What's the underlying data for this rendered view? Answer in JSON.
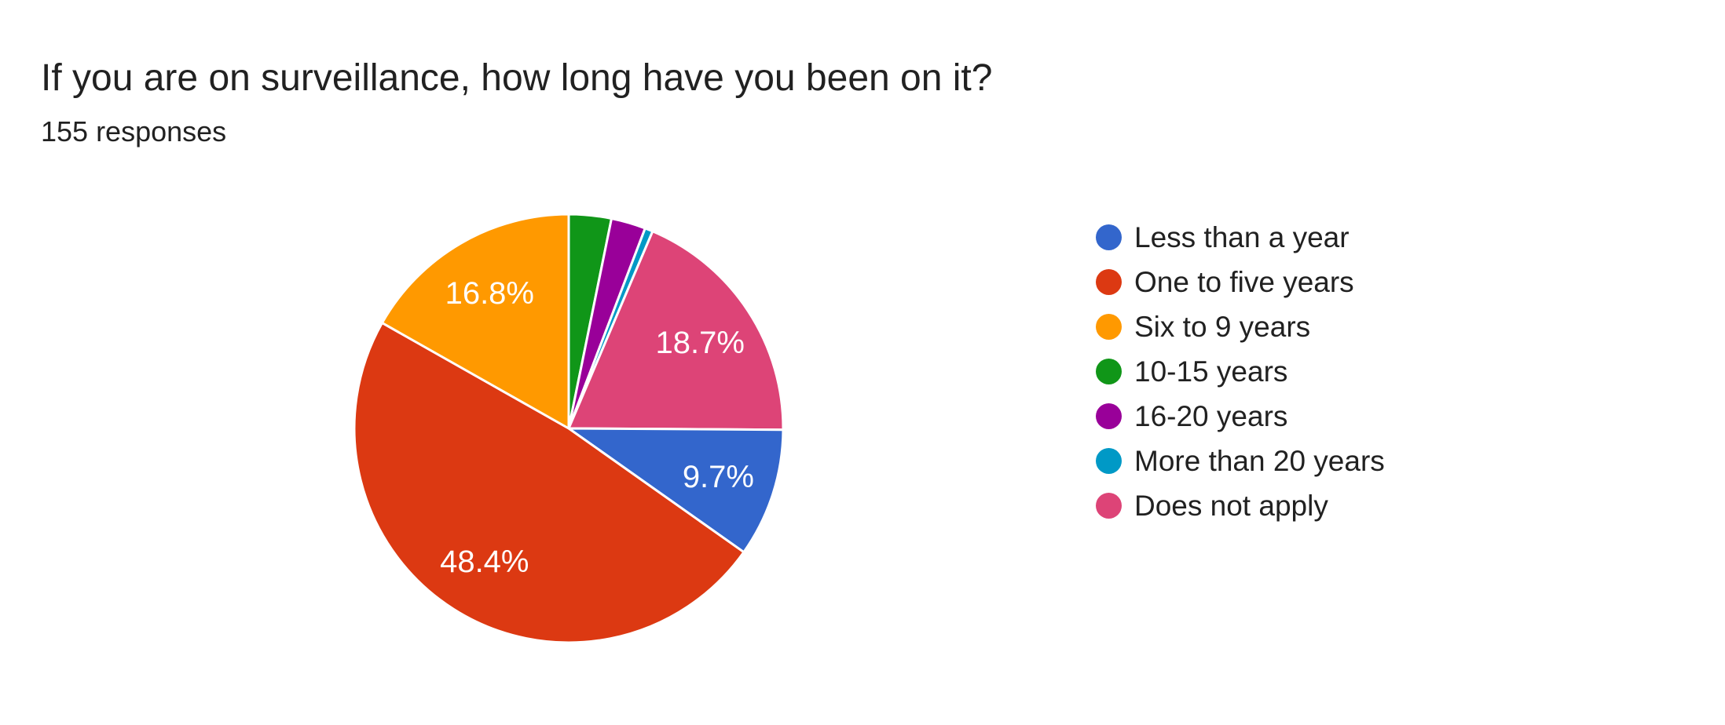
{
  "header": {
    "title": "If you are on surveillance, how long have you been on it?",
    "subtitle": "155 responses"
  },
  "chart_data": {
    "type": "pie",
    "title": "If you are on surveillance, how long have you been on it?",
    "subtitle": "155 responses",
    "total_responses": 155,
    "legend_position": "right",
    "start_angle_deg": 0,
    "draw_order": [
      "10-15 years",
      "16-20 years",
      "More than 20 years",
      "Does not apply",
      "Less than a year",
      "One to five years",
      "Six to 9 years"
    ],
    "slices": [
      {
        "label": "Less than a year",
        "pct": 9.7,
        "color": "#3366CC",
        "pct_label": "9.7%"
      },
      {
        "label": "One to five years",
        "pct": 48.4,
        "color": "#DC3912",
        "pct_label": "48.4%"
      },
      {
        "label": "Six to 9 years",
        "pct": 16.8,
        "color": "#FF9900",
        "pct_label": "16.8%"
      },
      {
        "label": "10-15 years",
        "pct": 3.2,
        "color": "#109618",
        "pct_label": ""
      },
      {
        "label": "16-20 years",
        "pct": 2.6,
        "color": "#990099",
        "pct_label": ""
      },
      {
        "label": "More than 20 years",
        "pct": 0.6,
        "color": "#0099C6",
        "pct_label": ""
      },
      {
        "label": "Does not apply",
        "pct": 18.7,
        "color": "#DD4477",
        "pct_label": "18.7%"
      }
    ]
  },
  "style": {
    "background": "#ffffff",
    "text_color": "#212121",
    "pct_label_color": "#ffffff",
    "slice_border_color": "#ffffff"
  }
}
